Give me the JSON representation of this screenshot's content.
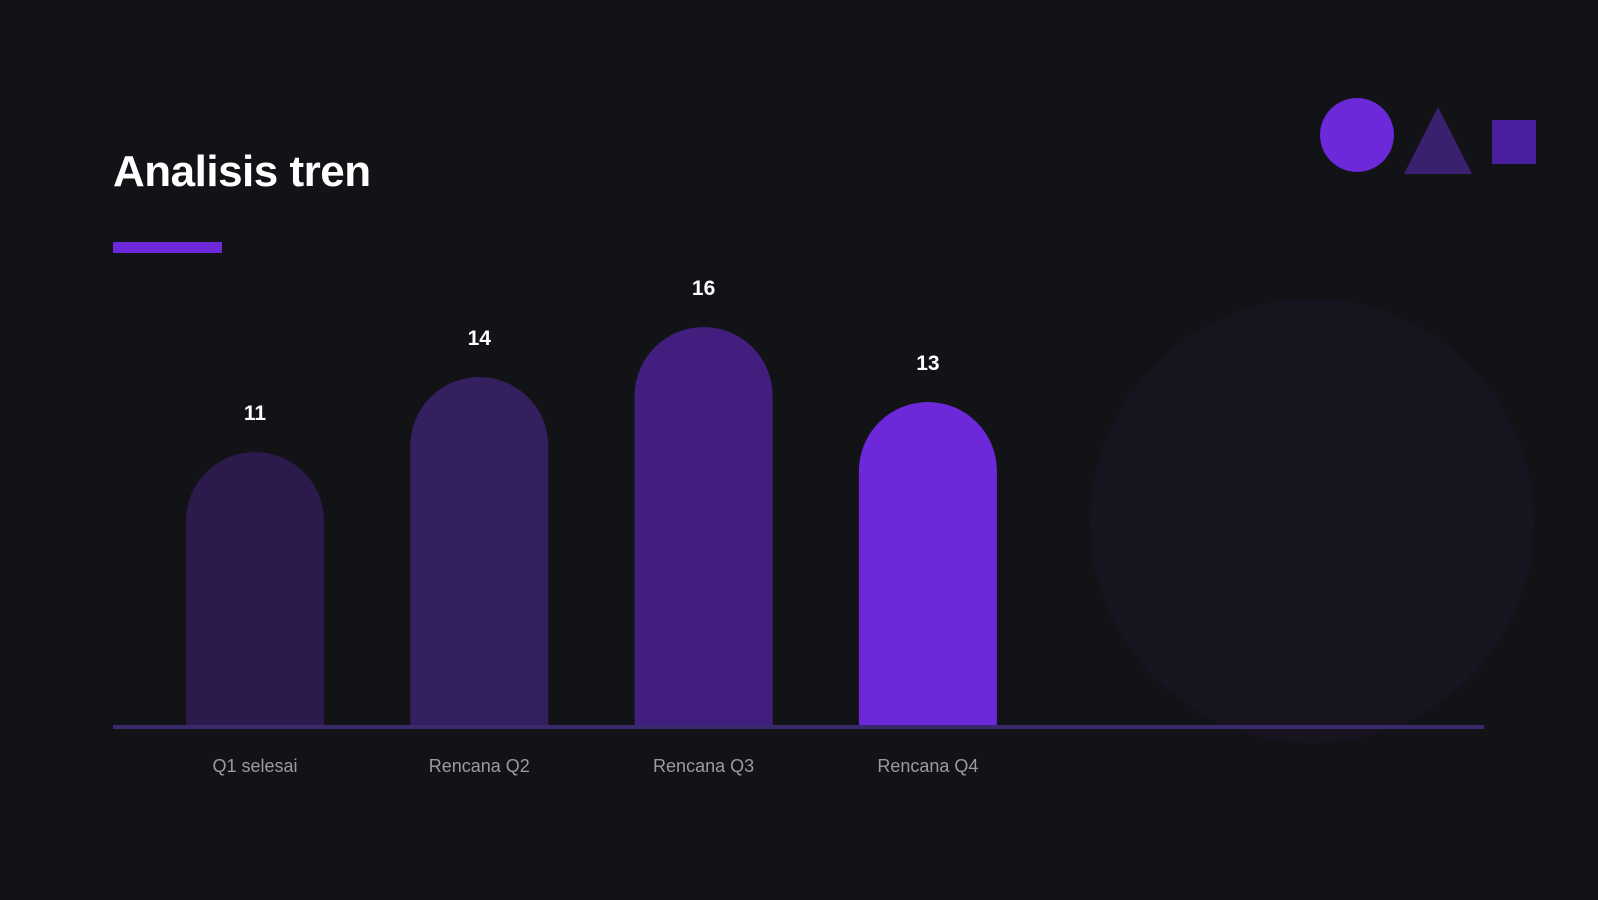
{
  "slide": {
    "title": "Analisis tren"
  },
  "colors": {
    "background": "#121317",
    "accent": "#6d28d9",
    "bar_colors": [
      "#2c1a4d",
      "#35205f",
      "#421f7e",
      "#6d28d9"
    ],
    "baseline": "#3a2a6b",
    "value_label": "#ffffff",
    "category_label": "#9a9aa3",
    "bg_circle": "#17131f",
    "deco_circle": "#6d28d9",
    "deco_triangle": "#3b2070",
    "deco_square": "#4b20a0"
  },
  "decorations": {
    "icons": [
      "circle-shape-icon",
      "triangle-shape-icon",
      "square-shape-icon"
    ]
  },
  "chart_data": {
    "type": "bar",
    "title": "Analisis tren",
    "categories": [
      "Q1 selesai",
      "Rencana Q2",
      "Rencana Q3",
      "Rencana Q4"
    ],
    "values": [
      11,
      14,
      16,
      13
    ],
    "xlabel": "",
    "ylabel": "",
    "ylim": [
      0,
      16
    ],
    "grid": false,
    "legend": "none",
    "data_labels": true,
    "bar_shape": "rounded-top"
  }
}
